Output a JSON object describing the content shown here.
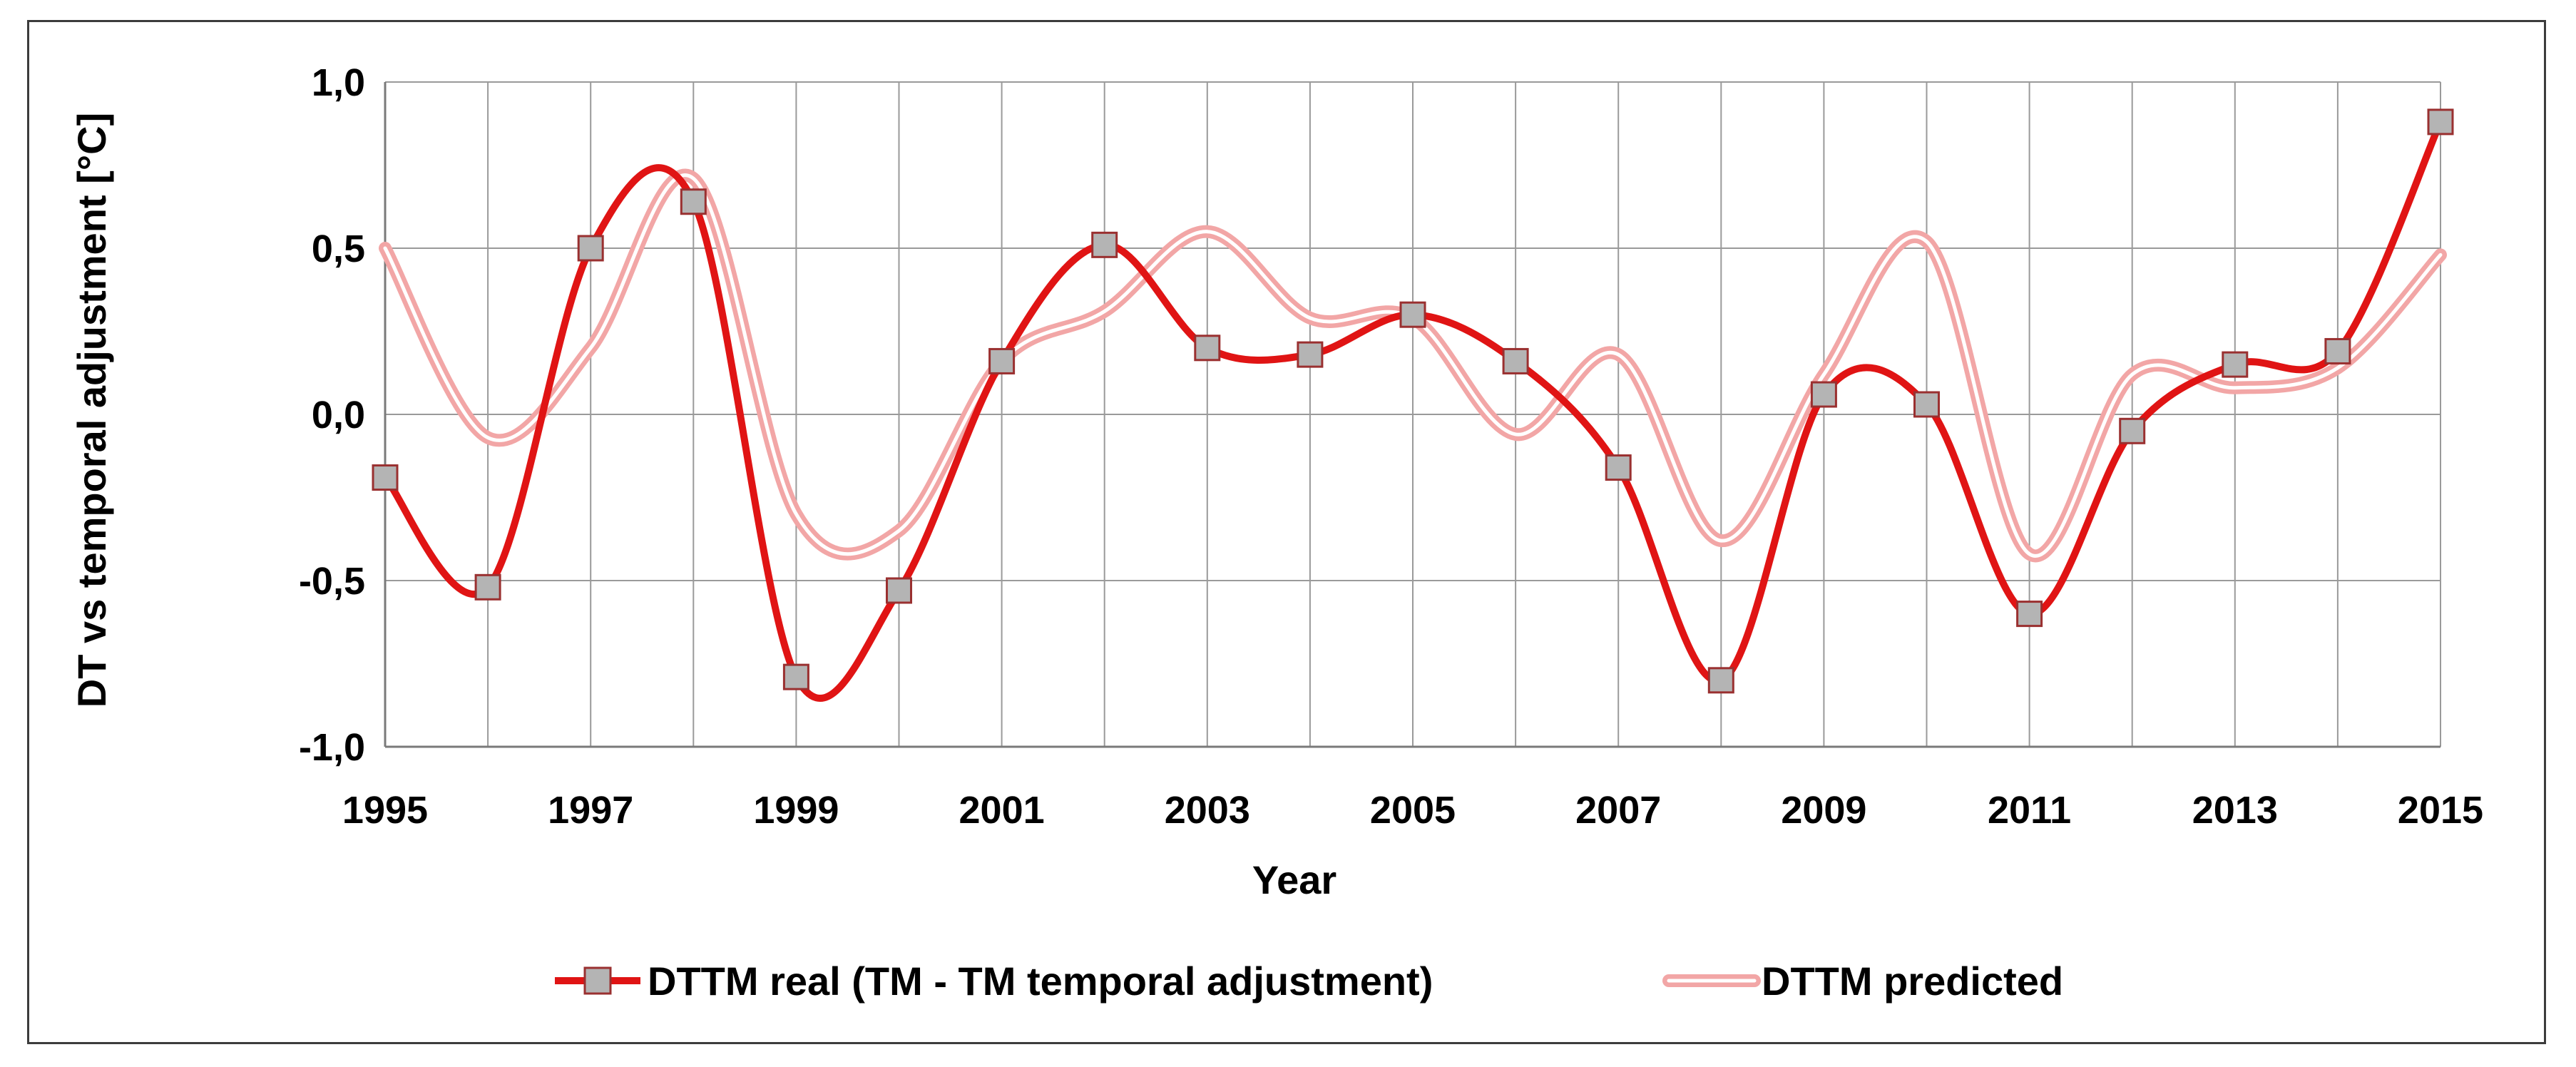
{
  "chart_data": {
    "type": "line",
    "title": "",
    "xlabel": "Year",
    "ylabel": "DT vs temporal adjustment [°C]",
    "xlim": [
      1995,
      2015
    ],
    "ylim": [
      -1.0,
      1.0
    ],
    "grid": true,
    "x": [
      1995,
      1996,
      1997,
      1998,
      1999,
      2000,
      2001,
      2002,
      2003,
      2004,
      2005,
      2006,
      2007,
      2008,
      2009,
      2010,
      2011,
      2012,
      2013,
      2014,
      2015
    ],
    "x_tick_labels": [
      "1995",
      "1997",
      "1999",
      "2001",
      "2003",
      "2005",
      "2007",
      "2009",
      "2011",
      "2013",
      "2015"
    ],
    "y_ticks": [
      1.0,
      0.5,
      0.0,
      -0.5,
      -1.0
    ],
    "y_tick_labels": [
      "1,0",
      "0,5",
      "0,0",
      "-0,5",
      "-1,0"
    ],
    "legend_position": "bottom",
    "colors": {
      "real": "#e01414",
      "marker_fill": "#b4b4b4",
      "marker_edge": "#9a3030",
      "predicted_outer": "#f2a6a6",
      "predicted_inner": "#ffffff",
      "grid": "#9a9a9a",
      "frame": "#3c3c3c"
    },
    "series": [
      {
        "name": "DTTM real (TM - TM temporal adjustment)",
        "values": [
          -0.19,
          -0.52,
          0.5,
          0.64,
          -0.79,
          -0.53,
          0.16,
          0.51,
          0.2,
          0.18,
          0.3,
          0.16,
          -0.16,
          -0.8,
          0.06,
          0.03,
          -0.6,
          -0.05,
          0.15,
          0.19,
          0.88
        ]
      },
      {
        "name": "DTTM predicted",
        "values": [
          0.5,
          -0.07,
          0.2,
          0.71,
          -0.3,
          -0.35,
          0.16,
          0.31,
          0.55,
          0.29,
          0.29,
          -0.06,
          0.18,
          -0.38,
          0.12,
          0.52,
          -0.42,
          0.12,
          0.08,
          0.14,
          0.48
        ]
      }
    ]
  }
}
